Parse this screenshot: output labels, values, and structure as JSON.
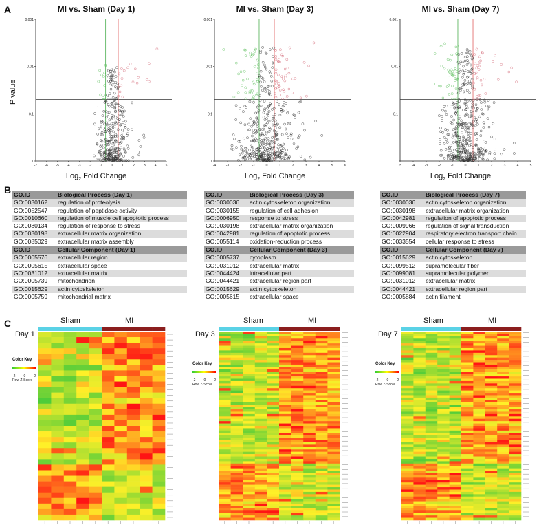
{
  "panel_labels": {
    "a": "A",
    "b": "B",
    "c": "C"
  },
  "volcano": {
    "ylabel": "P value",
    "xlabel_main": "Log",
    "xlabel_sub": "2",
    "xlabel_rest": " Fold Change",
    "ytick_labels": [
      "0.001",
      "0.01",
      "0.1",
      "1"
    ],
    "plots": [
      {
        "title": "MI vs. Sham (Day 1)",
        "xticks": [
          "-7",
          "-6",
          "-5",
          "-4",
          "-3",
          "-2",
          "-1",
          "0",
          "1",
          "2",
          "3",
          "4",
          "5"
        ]
      },
      {
        "title": "MI vs. Sham (Day 3)",
        "xticks": [
          "-4",
          "-3",
          "-2",
          "-1",
          "0",
          "1",
          "2",
          "3",
          "4",
          "5",
          "6"
        ]
      },
      {
        "title": "MI vs. Sham (Day 7)",
        "xticks": [
          "-5",
          "-4",
          "-3",
          "-2",
          "-1",
          "0",
          "1",
          "2",
          "3",
          "4",
          "5"
        ]
      }
    ]
  },
  "go_tables": [
    {
      "bp_header": [
        "GO.ID",
        "Biological Process (Day 1)"
      ],
      "bp_rows": [
        [
          "GO:0030162",
          "regulation of proteolysis"
        ],
        [
          "GO:0052547",
          "regulation of peptidase activity"
        ],
        [
          "GO:0010660",
          "regulation of muscle cell apoptotic process"
        ],
        [
          "GO:0080134",
          "regulation of response to stress"
        ],
        [
          "GO:0030198",
          "extracellular matrix organization"
        ],
        [
          "GO:0085029",
          "extracellular matrix assembly"
        ]
      ],
      "cc_header": [
        "GO.ID",
        "Cellular Component (Day 1)"
      ],
      "cc_rows": [
        [
          "GO:0005576",
          "extracellular region"
        ],
        [
          "GO:0005615",
          "extracellular space"
        ],
        [
          "GO:0031012",
          "extracellular matrix"
        ],
        [
          "GO:0005739",
          "mitochondrion"
        ],
        [
          "GO:0015629",
          "actin cytoskeleton"
        ],
        [
          "GO:0005759",
          "mitochondrial matrix"
        ]
      ]
    },
    {
      "bp_header": [
        "GO.ID",
        "Biological Process (Day 3)"
      ],
      "bp_rows": [
        [
          "GO:0030036",
          "actin cytoskeleton organization"
        ],
        [
          "GO:0030155",
          "regulation of cell adhesion"
        ],
        [
          "GO:0006950",
          "response to stress"
        ],
        [
          "GO:0030198",
          "extracellular matrix organization"
        ],
        [
          "GO:0042981",
          "regulation of apoptotic process"
        ],
        [
          "GO:0055114",
          "oxidation-reduction process"
        ]
      ],
      "cc_header": [
        "GO.ID",
        "Cellular Component (Day 3)"
      ],
      "cc_rows": [
        [
          "GO:0005737",
          "cytoplasm"
        ],
        [
          "GO:0031012",
          "extracellular matrix"
        ],
        [
          "GO:0044424",
          "intracellular part"
        ],
        [
          "GO:0044421",
          "extracellular region part"
        ],
        [
          "GO:0015629",
          "actin cytoskeleton"
        ],
        [
          "GO:0005615",
          "extracellular space"
        ]
      ]
    },
    {
      "bp_header": [
        "GO.ID",
        "Biological Process (Day 7)"
      ],
      "bp_rows": [
        [
          "GO:0030036",
          "actin cytoskeleton organization"
        ],
        [
          "GO:0030198",
          "extracellular matrix organization"
        ],
        [
          "GO:0042981",
          "regulation of apoptotic process"
        ],
        [
          "GO:0009966",
          "regulation of signal transduction"
        ],
        [
          "GO:0022904",
          "respiratory electron transport chain"
        ],
        [
          "GO:0033554",
          "cellular response to stress"
        ]
      ],
      "cc_header": [
        "GO.ID",
        "Cellular Component (Day 7)"
      ],
      "cc_rows": [
        [
          "GO:0015629",
          "actin cytoskeleton"
        ],
        [
          "GO:0099512",
          "supramolecular fiber"
        ],
        [
          "GO:0099081",
          "supramolecular polymer"
        ],
        [
          "GO:0031012",
          "extracellular matrix"
        ],
        [
          "GO:0044421",
          "extracellular region part"
        ],
        [
          "GO:0005884",
          "actin filament"
        ]
      ]
    }
  ],
  "heatmaps": {
    "group_labels": [
      "Sham",
      "MI"
    ],
    "color_key": {
      "title": "Color Key",
      "ticks": [
        "-2",
        "0",
        "2"
      ],
      "footer": "Row Z-Score"
    },
    "group_colors": {
      "sham": "#5ad2e6",
      "mi": "#8b1e1e"
    },
    "scale_colors": [
      "#33cc33",
      "#ffff00",
      "#ff0000"
    ],
    "days": [
      {
        "label": "Day 1",
        "rows": 34,
        "cols": 10
      },
      {
        "label": "Day 3",
        "rows": 80,
        "cols": 10
      },
      {
        "label": "Day 7",
        "rows": 80,
        "cols": 10
      }
    ]
  },
  "chart_data": [
    {
      "type": "scatter",
      "title": "MI vs. Sham (Day 1)",
      "xlabel": "Log2 Fold Change",
      "ylabel": "P value",
      "xlim": [
        -7,
        5
      ],
      "ylim": [
        0.001,
        1
      ],
      "y_scale": "log",
      "thresholds": {
        "p": 0.05,
        "log2fc": [
          -0.58,
          0.58
        ]
      }
    },
    {
      "type": "scatter",
      "title": "MI vs. Sham (Day 3)",
      "xlabel": "Log2 Fold Change",
      "ylabel": "P value",
      "xlim": [
        -4,
        6
      ],
      "ylim": [
        0.001,
        1
      ],
      "y_scale": "log",
      "thresholds": {
        "p": 0.05,
        "log2fc": [
          -0.58,
          0.58
        ]
      }
    },
    {
      "type": "scatter",
      "title": "MI vs. Sham (Day 7)",
      "xlabel": "Log2 Fold Change",
      "ylabel": "P value",
      "xlim": [
        -5,
        5
      ],
      "ylim": [
        0.001,
        1
      ],
      "y_scale": "log",
      "thresholds": {
        "p": 0.05,
        "log2fc": [
          -0.58,
          0.58
        ]
      }
    },
    {
      "type": "heatmap",
      "title": "",
      "x_groups": [
        "Sham",
        "Sham",
        "Sham",
        "Sham",
        "Sham",
        "MI",
        "MI",
        "MI",
        "MI",
        "MI"
      ],
      "legend": "Row Z-Score",
      "range": [
        -2,
        2
      ]
    },
    {
      "type": "heatmap",
      "title": "",
      "x_groups": [
        "Sham",
        "Sham",
        "Sham",
        "Sham",
        "Sham",
        "MI",
        "MI",
        "MI",
        "MI",
        "MI"
      ],
      "legend": "Row Z-Score",
      "range": [
        -2,
        2
      ]
    },
    {
      "type": "heatmap",
      "title": "",
      "x_groups": [
        "Sham",
        "Sham",
        "Sham",
        "Sham",
        "Sham",
        "MI",
        "MI",
        "MI",
        "MI",
        "MI"
      ],
      "legend": "Row Z-Score",
      "range": [
        -2,
        2
      ]
    }
  ]
}
